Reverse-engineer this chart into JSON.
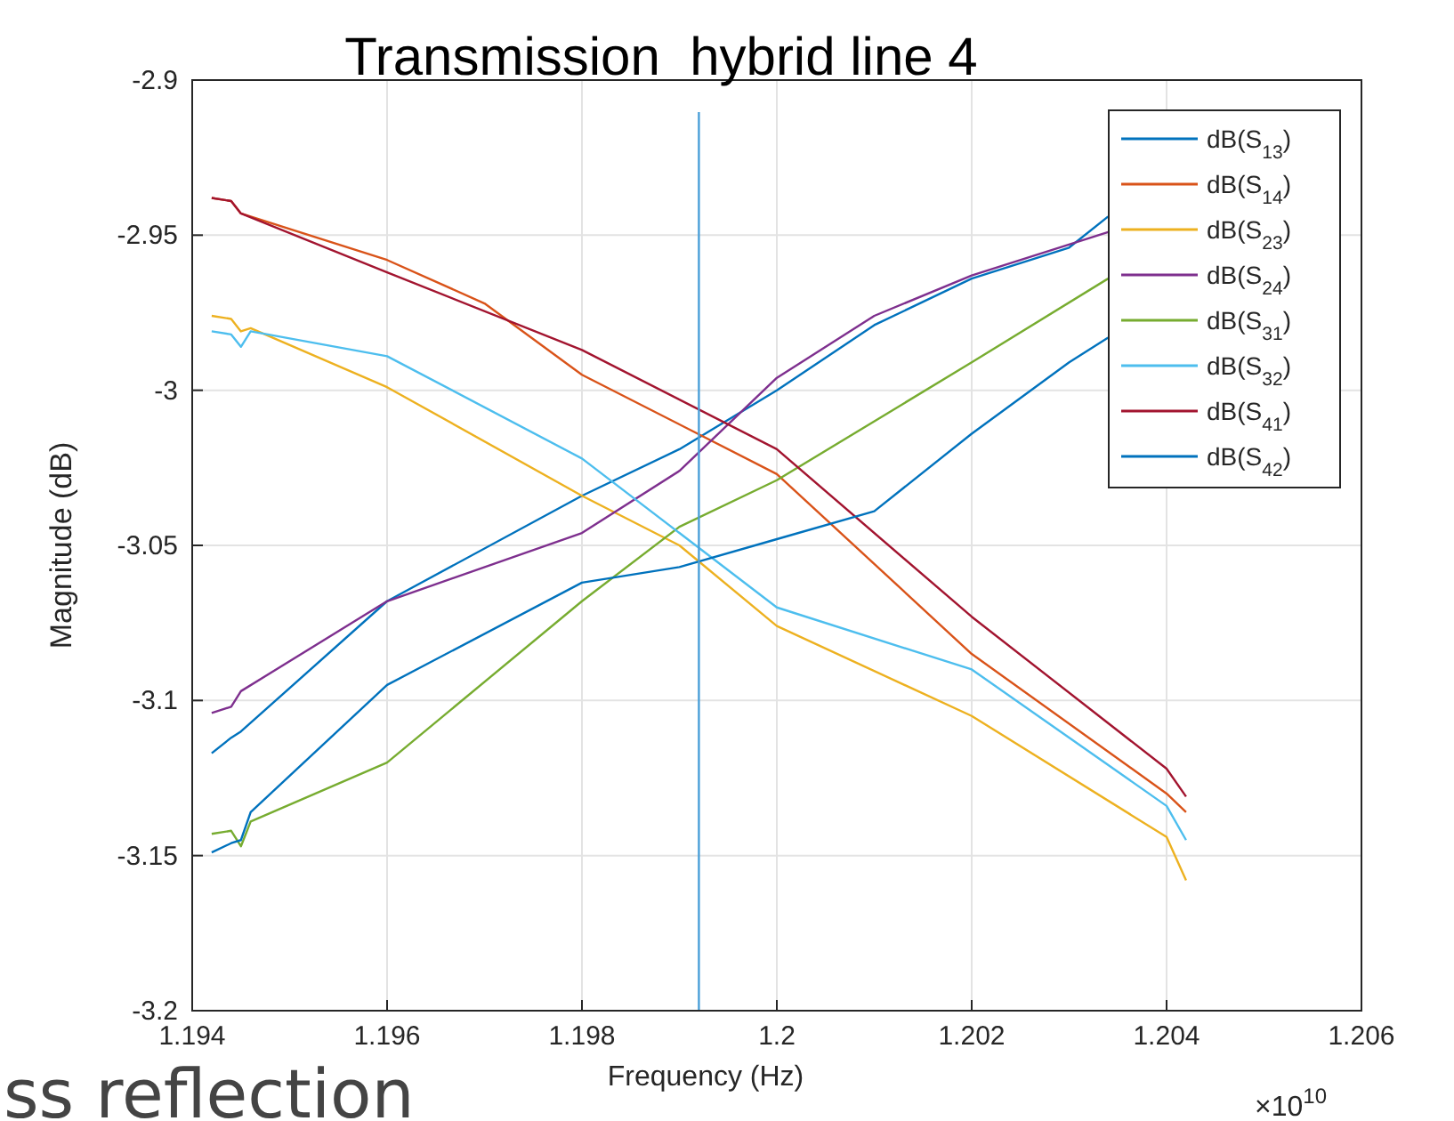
{
  "chart_data": {
    "type": "line",
    "title": "Transmission  hybrid line 4",
    "xlabel": "Frequency (Hz)",
    "ylabel": "Magnitude (dB)",
    "xlim": [
      1.194,
      1.206
    ],
    "xticks": [
      1.194,
      1.196,
      1.198,
      1.2,
      1.202,
      1.204,
      1.206
    ],
    "ylim": [
      -3.2,
      -2.9
    ],
    "yticks": [
      -3.2,
      -3.15,
      -3.1,
      -3.05,
      -3,
      -2.95,
      -2.9
    ],
    "grid": true,
    "legend": "top right",
    "line_style": "solid",
    "marker": "none",
    "ref_lines": [
      {
        "axis": "x",
        "value": 1.1992,
        "color": "#4a9fd8"
      }
    ],
    "annotations": [
      "×10$^{10}$",
      "ss reflection"
    ],
    "series": [
      {
        "name": "dB(S$_{13}$)",
        "color": "#0072bd",
        "x": [
          1.1942,
          1.1944,
          1.1945,
          1.196,
          1.198,
          1.199,
          1.2,
          1.201,
          1.202,
          1.203,
          1.2034
        ],
        "values": [
          -3.117,
          -3.112,
          -3.11,
          -3.068,
          -3.034,
          -3.019,
          -3.0,
          -2.979,
          -2.964,
          -2.954,
          -2.944
        ]
      },
      {
        "name": "dB(S$_{14}$)",
        "color": "#d95319",
        "x": [
          1.1942,
          1.1944,
          1.1945,
          1.196,
          1.197,
          1.198,
          1.2,
          1.202,
          1.204,
          1.2042
        ],
        "values": [
          -2.938,
          -2.939,
          -2.943,
          -2.958,
          -2.972,
          -2.995,
          -3.027,
          -3.085,
          -3.13,
          -3.136
        ]
      },
      {
        "name": "dB(S$_{23}$)",
        "color": "#edb120",
        "x": [
          1.1942,
          1.1944,
          1.1945,
          1.1946,
          1.196,
          1.198,
          1.199,
          1.2,
          1.202,
          1.204,
          1.2042
        ],
        "values": [
          -2.976,
          -2.977,
          -2.981,
          -2.98,
          -2.999,
          -3.034,
          -3.05,
          -3.076,
          -3.105,
          -3.144,
          -3.158
        ]
      },
      {
        "name": "dB(S$_{24}$)",
        "color": "#7e2f8e",
        "x": [
          1.1942,
          1.1944,
          1.1945,
          1.196,
          1.198,
          1.199,
          1.2,
          1.201,
          1.202,
          1.2034
        ],
        "values": [
          -3.104,
          -3.102,
          -3.097,
          -3.068,
          -3.046,
          -3.026,
          -2.996,
          -2.976,
          -2.963,
          -2.949
        ]
      },
      {
        "name": "dB(S$_{31}$)",
        "color": "#77ac30",
        "x": [
          1.1942,
          1.1944,
          1.1945,
          1.1946,
          1.196,
          1.198,
          1.199,
          1.2,
          1.202,
          1.2034
        ],
        "values": [
          -3.143,
          -3.142,
          -3.147,
          -3.139,
          -3.12,
          -3.068,
          -3.044,
          -3.029,
          -2.991,
          -2.964
        ]
      },
      {
        "name": "dB(S$_{32}$)",
        "color": "#4dbeee",
        "x": [
          1.1942,
          1.1944,
          1.1945,
          1.1946,
          1.196,
          1.198,
          1.199,
          1.2,
          1.202,
          1.204,
          1.2042
        ],
        "values": [
          -2.981,
          -2.982,
          -2.986,
          -2.981,
          -2.989,
          -3.022,
          -3.046,
          -3.07,
          -3.09,
          -3.134,
          -3.145
        ]
      },
      {
        "name": "dB(S$_{41}$)",
        "color": "#a2142f",
        "x": [
          1.1942,
          1.1944,
          1.1945,
          1.196,
          1.198,
          1.2,
          1.202,
          1.204,
          1.2042
        ],
        "values": [
          -2.938,
          -2.939,
          -2.943,
          -2.962,
          -2.987,
          -3.019,
          -3.073,
          -3.122,
          -3.131
        ]
      },
      {
        "name": "dB(S$_{42}$)",
        "color": "#0072bd",
        "x": [
          1.1942,
          1.1944,
          1.1945,
          1.1946,
          1.196,
          1.198,
          1.199,
          1.2,
          1.201,
          1.202,
          1.203,
          1.2034
        ],
        "values": [
          -3.149,
          -3.146,
          -3.145,
          -3.136,
          -3.095,
          -3.062,
          -3.057,
          -3.048,
          -3.039,
          -3.014,
          -2.991,
          -2.983
        ]
      }
    ]
  }
}
